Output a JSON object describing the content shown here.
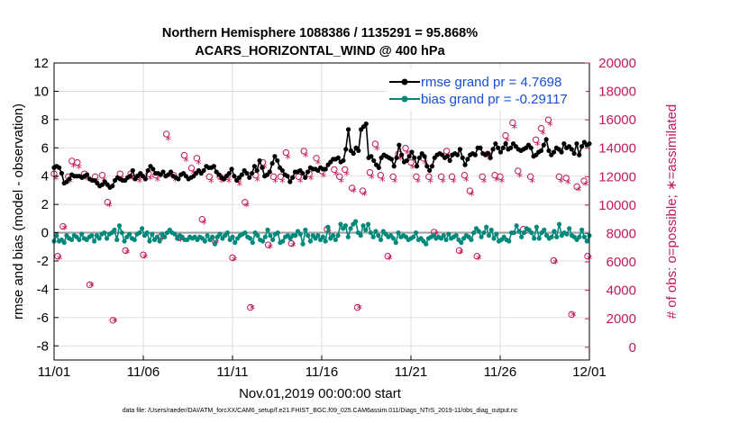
{
  "chart_data": {
    "type": "line",
    "title": "Northern Hemisphere 1088386 / 1135291 = 95.868%",
    "subtitle": "ACARS_HORIZONTAL_WIND @ 400 hPa",
    "xlabel": "Nov.01,2019 00:00:00 start",
    "ylabel_left": "rmse and bias (model - observation)",
    "ylabel_right": "# of obs: o=possible; ∗=assimilated",
    "footnote": "data file: /Users/raeder/DAI/ATM_forcXX/CAM6_setup/f.e21.FHIST_BGC.f09_025.CAM6assim.011/Diags_NTrS_2019-11/obs_diag_output.nc",
    "x_ticks": [
      "11/01",
      "11/06",
      "11/11",
      "11/16",
      "11/21",
      "11/26",
      "12/01"
    ],
    "x_range_days": [
      0,
      30
    ],
    "ylim_left": [
      -9,
      12
    ],
    "yticks_left": [
      "12",
      "10",
      "8",
      "6",
      "4",
      "2",
      "0",
      "-2",
      "-4",
      "-6",
      "-8"
    ],
    "ylim_right": [
      -900,
      20000
    ],
    "yticks_right": [
      "20000",
      "18000",
      "16000",
      "14000",
      "12000",
      "10000",
      "8000",
      "6000",
      "4000",
      "2000",
      "0"
    ],
    "grid": true,
    "legend": {
      "position": "top-right",
      "rmse_label": "rmse grand pr = 4.7698",
      "bias_label": "bias grand pr = -0.29117"
    },
    "series": [
      {
        "name": "rmse",
        "color": "#000000",
        "marker": "filled-circle",
        "axis": "left",
        "values": [
          4.6,
          4.7,
          4.6,
          4.2,
          3.5,
          3.6,
          3.8,
          4.1,
          4.0,
          4.0,
          4.0,
          3.9,
          4.0,
          4.1,
          3.8,
          3.7,
          3.7,
          3.5,
          3.3,
          3.4,
          3.6,
          3.4,
          3.2,
          3.3,
          3.7,
          3.9,
          3.8,
          3.7,
          3.7,
          3.9,
          4.0,
          4.4,
          3.8,
          4.0,
          4.2,
          4.0,
          3.8,
          4.4,
          4.7,
          4.5,
          4.2,
          4.2,
          4.1,
          4.3,
          4.0,
          4.1,
          4.3,
          4.0,
          3.9,
          3.8,
          4.1,
          4.2,
          4.0,
          3.8,
          3.9,
          4.0,
          4.2,
          4.4,
          4.2,
          4.4,
          4.7,
          4.6,
          4.6,
          4.7,
          4.3,
          4.1,
          3.9,
          3.8,
          4.0,
          4.2,
          4.5,
          4.0,
          3.7,
          3.9,
          4.1,
          4.4,
          4.2,
          3.9,
          4.2,
          4.7,
          4.4,
          5.1,
          4.6,
          4.0,
          4.1,
          4.3,
          4.9,
          5.4,
          5.1,
          4.6,
          4.4,
          4.1,
          4.0,
          3.6,
          3.9,
          4.3,
          4.3,
          4.4,
          4.2,
          3.9,
          4.3,
          4.6,
          4.5,
          4.5,
          4.4,
          4.6,
          4.5,
          4.5,
          4.8,
          5.0,
          5.2,
          5.2,
          5.3,
          5.0,
          5.1,
          5.9,
          7.3,
          5.8,
          5.6,
          6.0,
          5.8,
          7.3,
          7.5,
          7.7,
          5.3,
          5.4,
          5.1,
          4.8,
          4.6,
          5.3,
          5.5,
          5.4,
          5.3,
          5.2,
          4.7,
          5.3,
          6.2,
          5.5,
          5.0,
          5.1,
          5.4,
          5.7,
          5.3,
          4.7,
          5.3,
          5.6,
          5.4,
          4.7,
          4.4,
          4.7,
          5.3,
          5.5,
          5.6,
          5.5,
          5.3,
          5.4,
          5.1,
          5.5,
          5.6,
          5.5,
          5.9,
          5.3,
          4.8,
          5.2,
          5.5,
          5.6,
          5.5,
          6.0,
          6.0,
          5.6,
          5.5,
          5.6,
          5.3,
          5.9,
          6.3,
          6.0,
          5.7,
          6.0,
          6.3,
          5.9,
          6.0,
          6.3,
          6.1,
          5.9,
          5.8,
          5.9,
          6.0,
          6.2,
          6.0,
          5.4,
          5.5,
          5.7,
          5.8,
          6.2,
          6.6,
          5.8,
          5.5,
          5.7,
          6.0,
          5.9,
          5.7,
          6.3,
          6.0,
          6.1,
          5.9,
          5.6,
          6.3,
          5.5,
          6.1,
          6.4,
          6.2,
          6.3
        ]
      },
      {
        "name": "bias",
        "color": "#00897b",
        "marker": "filled-circle",
        "axis": "left",
        "values": [
          -0.6,
          -0.2,
          -0.6,
          -0.5,
          -0.7,
          -0.2,
          -0.4,
          -0.5,
          -0.2,
          -0.3,
          -0.5,
          -0.1,
          -0.4,
          -0.5,
          -0.3,
          -0.2,
          -0.6,
          -0.2,
          -0.4,
          -0.1,
          0.0,
          -0.4,
          -0.1,
          0.0,
          0.2,
          -0.5,
          0.5,
          0.0,
          -0.6,
          -0.3,
          -0.1,
          -0.4,
          -0.5,
          -0.1,
          0.0,
          0.3,
          -0.2,
          0.0,
          -0.6,
          -0.1,
          -0.5,
          -0.3,
          -0.6,
          -0.1,
          -0.3,
          0.0,
          0.2,
          0.0,
          -0.1,
          -0.4,
          -0.2,
          -0.3,
          -0.5,
          -0.5,
          -0.3,
          -0.4,
          -0.3,
          -0.5,
          -0.3,
          -0.4,
          -0.6,
          -0.2,
          -0.5,
          -0.3,
          -0.8,
          -0.3,
          -0.1,
          -0.4,
          -0.2,
          0.0,
          -0.5,
          -0.3,
          -0.7,
          -0.4,
          -0.2,
          -0.1,
          0.0,
          -0.3,
          -0.4,
          -0.7,
          0.0,
          -0.2,
          -0.5,
          -0.6,
          -0.3,
          0.2,
          -0.2,
          -0.5,
          -0.1,
          0.0,
          -0.7,
          -0.6,
          -0.3,
          -0.2,
          -0.4,
          -0.2,
          -0.2,
          0.1,
          -0.1,
          -0.8,
          0.2,
          -0.2,
          -0.6,
          -0.2,
          -0.4,
          -0.2,
          -0.5,
          -0.3,
          -0.6,
          0.4,
          -0.4,
          -0.2,
          -0.5,
          -0.2,
          0.6,
          0.3,
          0.5,
          -0.3,
          0.3,
          0.6,
          0.8,
          0.0,
          -0.2,
          0.5,
          0.2,
          0.6,
          0.0,
          -0.3,
          0.1,
          -0.2,
          -0.5,
          0.1,
          -0.1,
          -0.3,
          -0.2,
          -0.4,
          -0.7,
          0.0,
          -0.3,
          -0.2,
          -0.3,
          -0.5,
          -0.4,
          -0.3,
          0.0,
          -0.5,
          -0.4,
          -0.6,
          -0.8,
          -0.4,
          -0.3,
          -0.2,
          -0.4,
          -0.3,
          -0.4,
          -0.2,
          -0.5,
          -0.1,
          -0.4,
          -0.3,
          -0.2,
          -0.5,
          -0.7,
          -0.4,
          -0.2,
          -0.3,
          -0.5,
          0.0,
          0.3,
          0.1,
          -0.3,
          0.0,
          0.4,
          -0.2,
          0.2,
          -0.4,
          -0.1,
          -0.6,
          -0.5,
          -0.3,
          -0.5,
          -0.6,
          0.0,
          0.0,
          0.5,
          0.1,
          -0.3,
          0.0,
          0.3,
          0.2,
          0.0,
          -0.4,
          0.4,
          -0.4,
          0.0,
          0.2,
          -0.2,
          -0.4,
          -0.3,
          0.1,
          -0.3,
          0.6,
          -0.2,
          0.0,
          -0.1,
          0.3,
          -0.2,
          -0.3,
          -0.5,
          -0.3,
          0.2,
          -0.3,
          -0.6,
          -0.2
        ]
      },
      {
        "name": "possible obs (o)",
        "color": "#c2185b",
        "marker": "open-circle",
        "axis": "right",
        "points": [
          [
            0.0,
            12200
          ],
          [
            0.2,
            6400
          ],
          [
            0.5,
            8500
          ],
          [
            0.8,
            12000
          ],
          [
            1.0,
            13100
          ],
          [
            1.3,
            13000
          ],
          [
            1.7,
            12200
          ],
          [
            2.0,
            4400
          ],
          [
            2.3,
            12000
          ],
          [
            2.7,
            12100
          ],
          [
            3.0,
            10200
          ],
          [
            3.3,
            1900
          ],
          [
            3.7,
            12200
          ],
          [
            4.0,
            6800
          ],
          [
            4.3,
            12200
          ],
          [
            4.7,
            12000
          ],
          [
            5.0,
            6500
          ],
          [
            5.3,
            12200
          ],
          [
            5.7,
            12100
          ],
          [
            6.0,
            7800
          ],
          [
            6.3,
            15000
          ],
          [
            6.7,
            12100
          ],
          [
            7.0,
            7700
          ],
          [
            7.3,
            13500
          ],
          [
            7.7,
            12600
          ],
          [
            8.0,
            13300
          ],
          [
            8.3,
            9000
          ],
          [
            8.7,
            12000
          ],
          [
            9.0,
            7500
          ],
          [
            9.3,
            12000
          ],
          [
            9.7,
            12000
          ],
          [
            10.0,
            6300
          ],
          [
            10.3,
            11800
          ],
          [
            10.7,
            10200
          ],
          [
            11.0,
            2800
          ],
          [
            11.3,
            12100
          ],
          [
            11.7,
            13000
          ],
          [
            12.0,
            7200
          ],
          [
            12.3,
            12000
          ],
          [
            12.7,
            12000
          ],
          [
            13.0,
            13700
          ],
          [
            13.3,
            7300
          ],
          [
            13.7,
            12000
          ],
          [
            14.0,
            13800
          ],
          [
            14.3,
            12200
          ],
          [
            14.7,
            13300
          ],
          [
            15.0,
            12400
          ],
          [
            15.3,
            8300
          ],
          [
            15.7,
            12500
          ],
          [
            16.0,
            12000
          ],
          [
            16.3,
            12500
          ],
          [
            16.7,
            11200
          ],
          [
            17.0,
            2800
          ],
          [
            17.3,
            11000
          ],
          [
            17.7,
            12300
          ],
          [
            18.0,
            14300
          ],
          [
            18.3,
            12100
          ],
          [
            18.7,
            6400
          ],
          [
            19.0,
            12000
          ],
          [
            19.3,
            13600
          ],
          [
            19.7,
            14000
          ],
          [
            20.0,
            13000
          ],
          [
            20.3,
            12000
          ],
          [
            20.7,
            13300
          ],
          [
            21.0,
            12000
          ],
          [
            21.3,
            8100
          ],
          [
            21.7,
            12000
          ],
          [
            22.0,
            13800
          ],
          [
            22.3,
            12000
          ],
          [
            22.7,
            6800
          ],
          [
            23.0,
            12100
          ],
          [
            23.3,
            11000
          ],
          [
            23.7,
            6400
          ],
          [
            24.0,
            12000
          ],
          [
            24.3,
            13600
          ],
          [
            24.7,
            12100
          ],
          [
            25.0,
            12000
          ],
          [
            25.3,
            14900
          ],
          [
            25.7,
            15800
          ],
          [
            26.0,
            12400
          ],
          [
            26.3,
            8300
          ],
          [
            26.7,
            12000
          ],
          [
            27.0,
            14600
          ],
          [
            27.3,
            15400
          ],
          [
            27.7,
            16000
          ],
          [
            28.0,
            6100
          ],
          [
            28.3,
            12000
          ],
          [
            28.7,
            11900
          ],
          [
            29.0,
            2300
          ],
          [
            29.3,
            11300
          ],
          [
            29.7,
            11700
          ],
          [
            29.9,
            6400
          ]
        ]
      },
      {
        "name": "assimilated obs (*)",
        "color": "#c2185b",
        "marker": "asterisk",
        "axis": "right",
        "points": [
          [
            0.1,
            11800
          ],
          [
            0.3,
            6200
          ],
          [
            0.6,
            8300
          ],
          [
            0.9,
            11600
          ],
          [
            1.1,
            12700
          ],
          [
            1.4,
            12600
          ],
          [
            1.8,
            11800
          ],
          [
            2.1,
            4300
          ],
          [
            2.4,
            11600
          ],
          [
            2.8,
            11700
          ],
          [
            3.1,
            9900
          ],
          [
            3.4,
            1800
          ],
          [
            3.8,
            11800
          ],
          [
            4.1,
            6600
          ],
          [
            4.4,
            11800
          ],
          [
            4.8,
            11600
          ],
          [
            5.1,
            6300
          ],
          [
            5.4,
            11800
          ],
          [
            5.8,
            11700
          ],
          [
            6.1,
            7600
          ],
          [
            6.4,
            14600
          ],
          [
            6.8,
            11700
          ],
          [
            7.1,
            7500
          ],
          [
            7.4,
            13100
          ],
          [
            7.8,
            12200
          ],
          [
            8.1,
            12900
          ],
          [
            8.4,
            8700
          ],
          [
            8.8,
            11600
          ],
          [
            9.1,
            7300
          ],
          [
            9.4,
            11600
          ],
          [
            9.8,
            11600
          ],
          [
            10.1,
            6100
          ],
          [
            10.4,
            11400
          ],
          [
            10.8,
            9900
          ],
          [
            11.1,
            2700
          ],
          [
            11.4,
            11700
          ],
          [
            11.8,
            12600
          ],
          [
            12.1,
            7000
          ],
          [
            12.4,
            11600
          ],
          [
            12.8,
            11600
          ],
          [
            13.1,
            13300
          ],
          [
            13.4,
            7100
          ],
          [
            13.8,
            11600
          ],
          [
            14.1,
            13400
          ],
          [
            14.4,
            11800
          ],
          [
            14.8,
            12900
          ],
          [
            15.1,
            12000
          ],
          [
            15.4,
            8000
          ],
          [
            15.8,
            12100
          ],
          [
            16.1,
            11600
          ],
          [
            16.4,
            12100
          ],
          [
            16.8,
            10900
          ],
          [
            17.1,
            2700
          ],
          [
            17.4,
            10700
          ],
          [
            17.8,
            11900
          ],
          [
            18.1,
            13900
          ],
          [
            18.4,
            11700
          ],
          [
            18.8,
            6200
          ],
          [
            19.1,
            11600
          ],
          [
            19.4,
            13200
          ],
          [
            19.8,
            13600
          ],
          [
            20.1,
            12600
          ],
          [
            20.4,
            11600
          ],
          [
            20.8,
            12900
          ],
          [
            21.1,
            11600
          ],
          [
            21.4,
            7900
          ],
          [
            21.8,
            11600
          ],
          [
            22.1,
            13400
          ],
          [
            22.4,
            11600
          ],
          [
            22.8,
            6600
          ],
          [
            23.1,
            11700
          ],
          [
            23.4,
            10700
          ],
          [
            23.8,
            6200
          ],
          [
            24.1,
            11600
          ],
          [
            24.4,
            13200
          ],
          [
            24.8,
            11700
          ],
          [
            25.1,
            11600
          ],
          [
            25.4,
            14500
          ],
          [
            25.8,
            15400
          ],
          [
            26.1,
            12000
          ],
          [
            26.4,
            8000
          ],
          [
            26.8,
            11600
          ],
          [
            27.1,
            14200
          ],
          [
            27.4,
            15000
          ],
          [
            27.8,
            15600
          ],
          [
            28.1,
            5900
          ],
          [
            28.4,
            11600
          ],
          [
            28.8,
            11500
          ],
          [
            29.1,
            2200
          ],
          [
            29.4,
            11000
          ],
          [
            29.8,
            11400
          ],
          [
            30.0,
            6200
          ]
        ]
      }
    ]
  }
}
